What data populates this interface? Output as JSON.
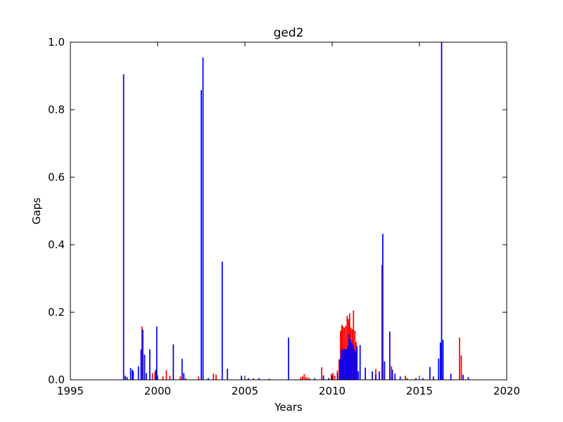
{
  "chart_data": {
    "type": "bar",
    "title": "ged2",
    "xlabel": "Years",
    "ylabel": "Gaps",
    "xlim": [
      1995,
      2020
    ],
    "ylim": [
      0,
      1.0
    ],
    "xticks": [
      "1995",
      "2000",
      "2005",
      "2010",
      "2015",
      "2020"
    ],
    "yticks": [
      "0.0",
      "0.2",
      "0.4",
      "0.6",
      "0.8",
      "1.0"
    ],
    "grid": false,
    "legend": "none",
    "colors": {
      "red": "#ff0000",
      "blue": "#0000ff"
    },
    "bar_width_years": 0.07,
    "series": [
      {
        "color": "red",
        "points": [
          [
            1999.1,
            0.158
          ],
          [
            1999.7,
            0.02
          ],
          [
            1999.85,
            0.025
          ],
          [
            2000.3,
            0.01
          ],
          [
            2000.5,
            0.028
          ],
          [
            2000.7,
            0.012
          ],
          [
            2001.3,
            0.01
          ],
          [
            2001.6,
            0.005
          ],
          [
            2002.35,
            0.01
          ],
          [
            2003.2,
            0.018
          ],
          [
            2003.35,
            0.015
          ],
          [
            2005.5,
            0.005
          ],
          [
            2008.2,
            0.008
          ],
          [
            2008.3,
            0.01
          ],
          [
            2008.4,
            0.017
          ],
          [
            2008.5,
            0.008
          ],
          [
            2008.6,
            0.006
          ],
          [
            2008.7,
            0.005
          ],
          [
            2009.4,
            0.037
          ],
          [
            2009.95,
            0.018
          ],
          [
            2010.05,
            0.02
          ],
          [
            2010.15,
            0.012
          ],
          [
            2010.3,
            0.028
          ],
          [
            2010.4,
            0.06
          ],
          [
            2010.48,
            0.145
          ],
          [
            2010.55,
            0.163
          ],
          [
            2010.62,
            0.158
          ],
          [
            2010.7,
            0.155
          ],
          [
            2010.78,
            0.16
          ],
          [
            2010.86,
            0.19
          ],
          [
            2010.93,
            0.18
          ],
          [
            2011.0,
            0.197
          ],
          [
            2011.07,
            0.155
          ],
          [
            2011.15,
            0.15
          ],
          [
            2011.22,
            0.205
          ],
          [
            2011.3,
            0.145
          ],
          [
            2011.37,
            0.112
          ],
          [
            2012.5,
            0.032
          ],
          [
            2012.85,
            0.34
          ],
          [
            2013.4,
            0.04
          ],
          [
            2014.2,
            0.012
          ],
          [
            2014.3,
            0.005
          ],
          [
            2017.3,
            0.125
          ],
          [
            2017.4,
            0.072
          ]
        ]
      },
      {
        "color": "blue",
        "points": [
          [
            1998.05,
            0.905
          ],
          [
            1998.15,
            0.012
          ],
          [
            1998.25,
            0.008
          ],
          [
            1998.45,
            0.035
          ],
          [
            1998.55,
            0.03
          ],
          [
            1998.6,
            0.025
          ],
          [
            1998.9,
            0.04
          ],
          [
            1999.05,
            0.09
          ],
          [
            1999.15,
            0.148
          ],
          [
            1999.25,
            0.075
          ],
          [
            1999.35,
            0.02
          ],
          [
            1999.55,
            0.09
          ],
          [
            1999.9,
            0.03
          ],
          [
            1999.95,
            0.158
          ],
          [
            2000.9,
            0.105
          ],
          [
            2001.4,
            0.062
          ],
          [
            2001.5,
            0.02
          ],
          [
            2002.5,
            0.858
          ],
          [
            2002.6,
            0.955
          ],
          [
            2002.9,
            0.005
          ],
          [
            2003.7,
            0.35
          ],
          [
            2004.0,
            0.033
          ],
          [
            2004.8,
            0.012
          ],
          [
            2005.2,
            0.005
          ],
          [
            2005.8,
            0.005
          ],
          [
            2006.4,
            0.003
          ],
          [
            2007.5,
            0.125
          ],
          [
            2009.0,
            0.005
          ],
          [
            2009.5,
            0.013
          ],
          [
            2009.8,
            0.005
          ],
          [
            2010.3,
            0.02
          ],
          [
            2010.45,
            0.062
          ],
          [
            2010.52,
            0.088
          ],
          [
            2010.6,
            0.09
          ],
          [
            2010.67,
            0.09
          ],
          [
            2010.75,
            0.092
          ],
          [
            2010.82,
            0.09
          ],
          [
            2010.9,
            0.1
          ],
          [
            2010.97,
            0.135
          ],
          [
            2011.05,
            0.12
          ],
          [
            2011.12,
            0.11
          ],
          [
            2011.2,
            0.105
          ],
          [
            2011.27,
            0.09
          ],
          [
            2011.35,
            0.085
          ],
          [
            2011.42,
            0.1
          ],
          [
            2011.5,
            0.025
          ],
          [
            2011.6,
            0.103
          ],
          [
            2011.9,
            0.036
          ],
          [
            2012.3,
            0.025
          ],
          [
            2012.5,
            0.015
          ],
          [
            2012.7,
            0.025
          ],
          [
            2012.9,
            0.432
          ],
          [
            2013.0,
            0.055
          ],
          [
            2013.3,
            0.143
          ],
          [
            2013.45,
            0.03
          ],
          [
            2013.6,
            0.018
          ],
          [
            2013.9,
            0.01
          ],
          [
            2014.8,
            0.005
          ],
          [
            2015.2,
            0.005
          ],
          [
            2015.6,
            0.038
          ],
          [
            2015.8,
            0.01
          ],
          [
            2016.1,
            0.063
          ],
          [
            2016.2,
            0.11
          ],
          [
            2016.27,
            1.0
          ],
          [
            2016.35,
            0.118
          ],
          [
            2016.8,
            0.018
          ],
          [
            2017.5,
            0.015
          ],
          [
            2017.8,
            0.008
          ]
        ]
      }
    ]
  }
}
